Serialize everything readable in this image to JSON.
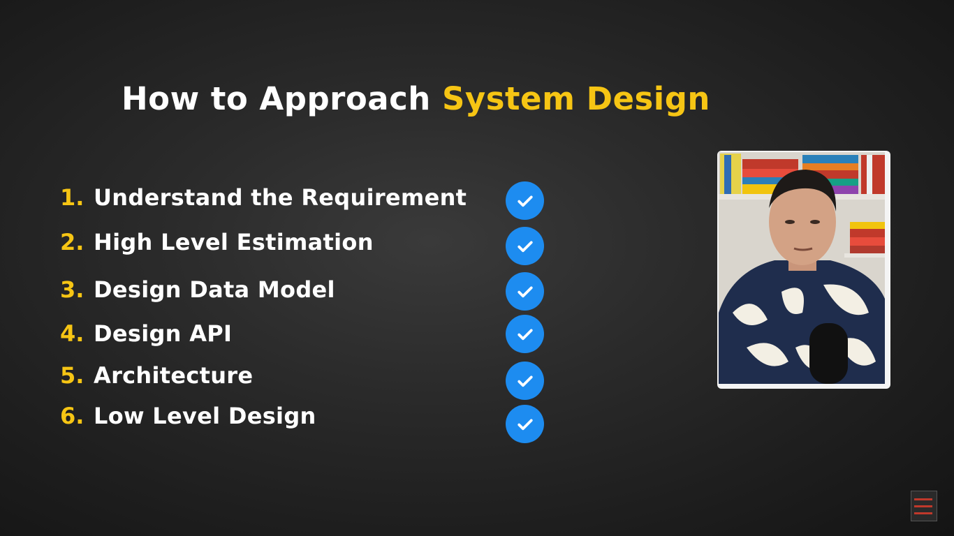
{
  "title": {
    "prefix": "How to Approach ",
    "accent": "System Design"
  },
  "steps": [
    {
      "num": "1.",
      "label": "Understand the Requirement",
      "status": "done"
    },
    {
      "num": "2.",
      "label": "High Level Estimation",
      "status": "done"
    },
    {
      "num": "3.",
      "label": "Design Data Model",
      "status": "done"
    },
    {
      "num": "4.",
      "label": "Design API",
      "status": "done"
    },
    {
      "num": "5.",
      "label": "Architecture",
      "status": "done"
    },
    {
      "num": "6.",
      "label": "Low Level Design",
      "status": "done"
    }
  ],
  "colors": {
    "accent": "#f6c514",
    "check": "#1d8cf0",
    "text": "#ffffff",
    "background": "#2b2b2b"
  },
  "icons": {
    "check": "check-circle-icon",
    "presenter": "presenter-webcam",
    "channel": "channel-badge-icon"
  }
}
